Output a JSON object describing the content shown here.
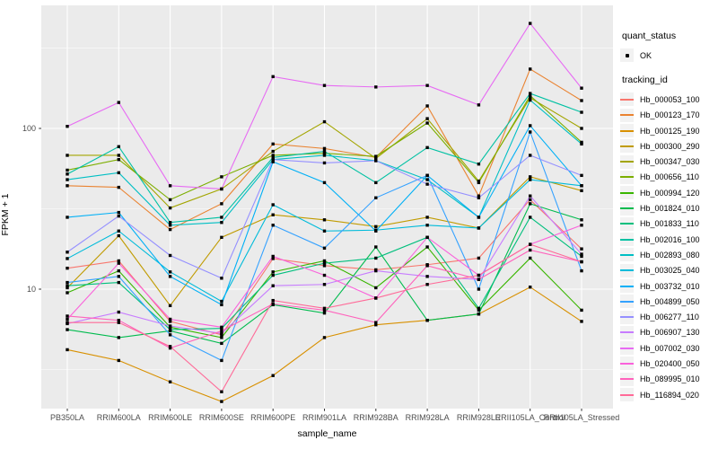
{
  "figure": {
    "x_axis_title": "sample_name",
    "y_axis_title": "FPKM + 1"
  },
  "legend": {
    "quant_status": {
      "title": "quant_status",
      "items": [
        {
          "label": "OK",
          "marker": "black-point"
        }
      ]
    },
    "tracking_id": {
      "title": "tracking_id"
    }
  },
  "chart_data": {
    "type": "line",
    "title": "",
    "xlabel": "sample_name",
    "ylabel": "FPKM + 1",
    "y_scale": "log10",
    "ylim": [
      1.8,
      580
    ],
    "y_major_ticks": [
      100,
      10
    ],
    "y_minor_gridlines": [
      316.2,
      31.62,
      3.162
    ],
    "grid": true,
    "legend_position": "right",
    "panel_background": "#EBEBEB",
    "gridline_color": "#FFFFFF",
    "tick_label_color": "#4D4D4D",
    "point_color": "#000000",
    "categories": [
      "PB350LA",
      "RRIM600LA",
      "RRIM600LE",
      "RRIM600SE",
      "RRIM600PE",
      "RRIM901LA",
      "RRIM928BA",
      "RRIM928LA",
      "RRIM928LE",
      "RRII105LA_Control",
      "RRII105LA_Stressed"
    ],
    "series": [
      {
        "name": "Hb_000053_100",
        "color": "#F8766D",
        "values": [
          13.5,
          15,
          6.3,
          5.2,
          15.5,
          14,
          13.2,
          14.2,
          15.6,
          36,
          17.8
        ]
      },
      {
        "name": "Hb_000123_170",
        "color": "#EA8331",
        "values": [
          44,
          43,
          23.5,
          34,
          80,
          75,
          66,
          138,
          38,
          234,
          149
        ]
      },
      {
        "name": "Hb_000125_190",
        "color": "#D89000",
        "values": [
          4.2,
          3.6,
          2.65,
          2.0,
          2.9,
          5.0,
          6.0,
          6.4,
          7.0,
          10.3,
          6.3
        ]
      },
      {
        "name": "Hb_000300_290",
        "color": "#C09B00",
        "values": [
          10.2,
          21.5,
          7.9,
          21,
          29,
          27,
          24.5,
          28,
          24,
          50,
          41
        ]
      },
      {
        "name": "Hb_000347_030",
        "color": "#A3A500",
        "values": [
          68,
          68,
          32,
          42,
          72,
          110,
          65,
          115,
          47,
          155,
          100
        ]
      },
      {
        "name": "Hb_000656_110",
        "color": "#7CAE00",
        "values": [
          55,
          64,
          36,
          50,
          68,
          70,
          67,
          108,
          46,
          160,
          82
        ]
      },
      {
        "name": "Hb_000994_120",
        "color": "#39B600",
        "values": [
          9.5,
          13,
          5.8,
          5.0,
          12.8,
          15,
          10.2,
          18.3,
          7.4,
          15.6,
          7.4
        ]
      },
      {
        "name": "Hb_001824_010",
        "color": "#00BB4E",
        "values": [
          5.6,
          5.0,
          5.5,
          4.6,
          8.0,
          7.1,
          18.3,
          6.4,
          7.0,
          34,
          27
        ]
      },
      {
        "name": "Hb_001833_110",
        "color": "#00BF7D",
        "values": [
          10.5,
          11,
          5.6,
          5.7,
          12.2,
          14.5,
          15.6,
          21,
          7.6,
          28,
          16
        ]
      },
      {
        "name": "Hb_002016_100",
        "color": "#00C1A3",
        "values": [
          52,
          77,
          26,
          28,
          66,
          72,
          46,
          76,
          60,
          165,
          126
        ]
      },
      {
        "name": "Hb_002893_080",
        "color": "#00BFC4",
        "values": [
          48,
          53,
          25,
          26,
          64,
          68,
          63,
          48,
          28,
          150,
          80
        ]
      },
      {
        "name": "Hb_003025_040",
        "color": "#00BBDA",
        "values": [
          15.5,
          23,
          12.8,
          8.4,
          33.5,
          23,
          23.3,
          25,
          24,
          48,
          44
        ]
      },
      {
        "name": "Hb_003732_010",
        "color": "#00B0F6",
        "values": [
          28,
          30,
          12.0,
          8.0,
          62,
          46,
          23,
          51,
          28,
          104,
          44
        ]
      },
      {
        "name": "Hb_004899_050",
        "color": "#35A2FF",
        "values": [
          11,
          12,
          5.2,
          3.6,
          25,
          18,
          37,
          51,
          10,
          95,
          13
        ]
      },
      {
        "name": "Hb_006277_110",
        "color": "#9590FF",
        "values": [
          17,
          28.5,
          16.2,
          11.7,
          64,
          61,
          63,
          45,
          37,
          68,
          51
        ]
      },
      {
        "name": "Hb_006907_130",
        "color": "#C77CFF",
        "values": [
          6.1,
          7.2,
          5.9,
          5.3,
          10.5,
          10.7,
          13,
          12,
          11.5,
          38,
          16.5
        ]
      },
      {
        "name": "Hb_007002_030",
        "color": "#E76BF3",
        "values": [
          103,
          145,
          44,
          42,
          210,
          185,
          181,
          185,
          140,
          450,
          178
        ]
      },
      {
        "name": "Hb_020400_050",
        "color": "#FA62DB",
        "values": [
          6.5,
          14.5,
          6.5,
          5.8,
          16,
          12.2,
          8.8,
          21,
          12.2,
          19,
          25
        ]
      },
      {
        "name": "Hb_089995_010",
        "color": "#FF62BC",
        "values": [
          6.8,
          6.4,
          4.3,
          5.5,
          8.1,
          7.4,
          6.2,
          14,
          11.5,
          17.5,
          14.8
        ]
      },
      {
        "name": "Hb_116894_020",
        "color": "#FF6A98",
        "values": [
          6.2,
          6.2,
          4.4,
          2.3,
          8.5,
          7.6,
          8.8,
          10.7,
          12.2,
          19,
          14.8
        ]
      }
    ]
  }
}
